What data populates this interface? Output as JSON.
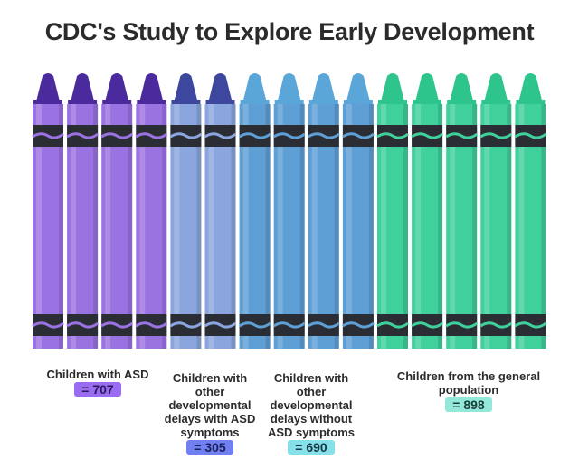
{
  "title": "CDC's Study to Explore Early Development",
  "chart_data": {
    "type": "pictograph",
    "title": "CDC's Study to Explore Early Development",
    "categories": [
      "Children with ASD",
      "Children with other developmental delays with ASD symptoms",
      "Children with other developmental delays without ASD symptoms",
      "Children from the general population"
    ],
    "values": [
      707,
      305,
      690,
      898
    ],
    "value_labels": [
      "= 707",
      "= 305",
      "= 690",
      "= 898"
    ],
    "crayons": [
      4,
      2,
      4,
      5
    ],
    "colors": [
      {
        "tip": "#4a2a9c",
        "body": "#9b72e2",
        "badge": "#9a6cf2"
      },
      {
        "tip": "#3d479e",
        "body": "#8ba6df",
        "badge": "#7180f0"
      },
      {
        "tip": "#5aa6d8",
        "body": "#5e9fd6",
        "badge": "#86e0ea"
      },
      {
        "tip": "#2ec58c",
        "body": "#3fd09c",
        "badge": "#93e8da"
      }
    ]
  }
}
